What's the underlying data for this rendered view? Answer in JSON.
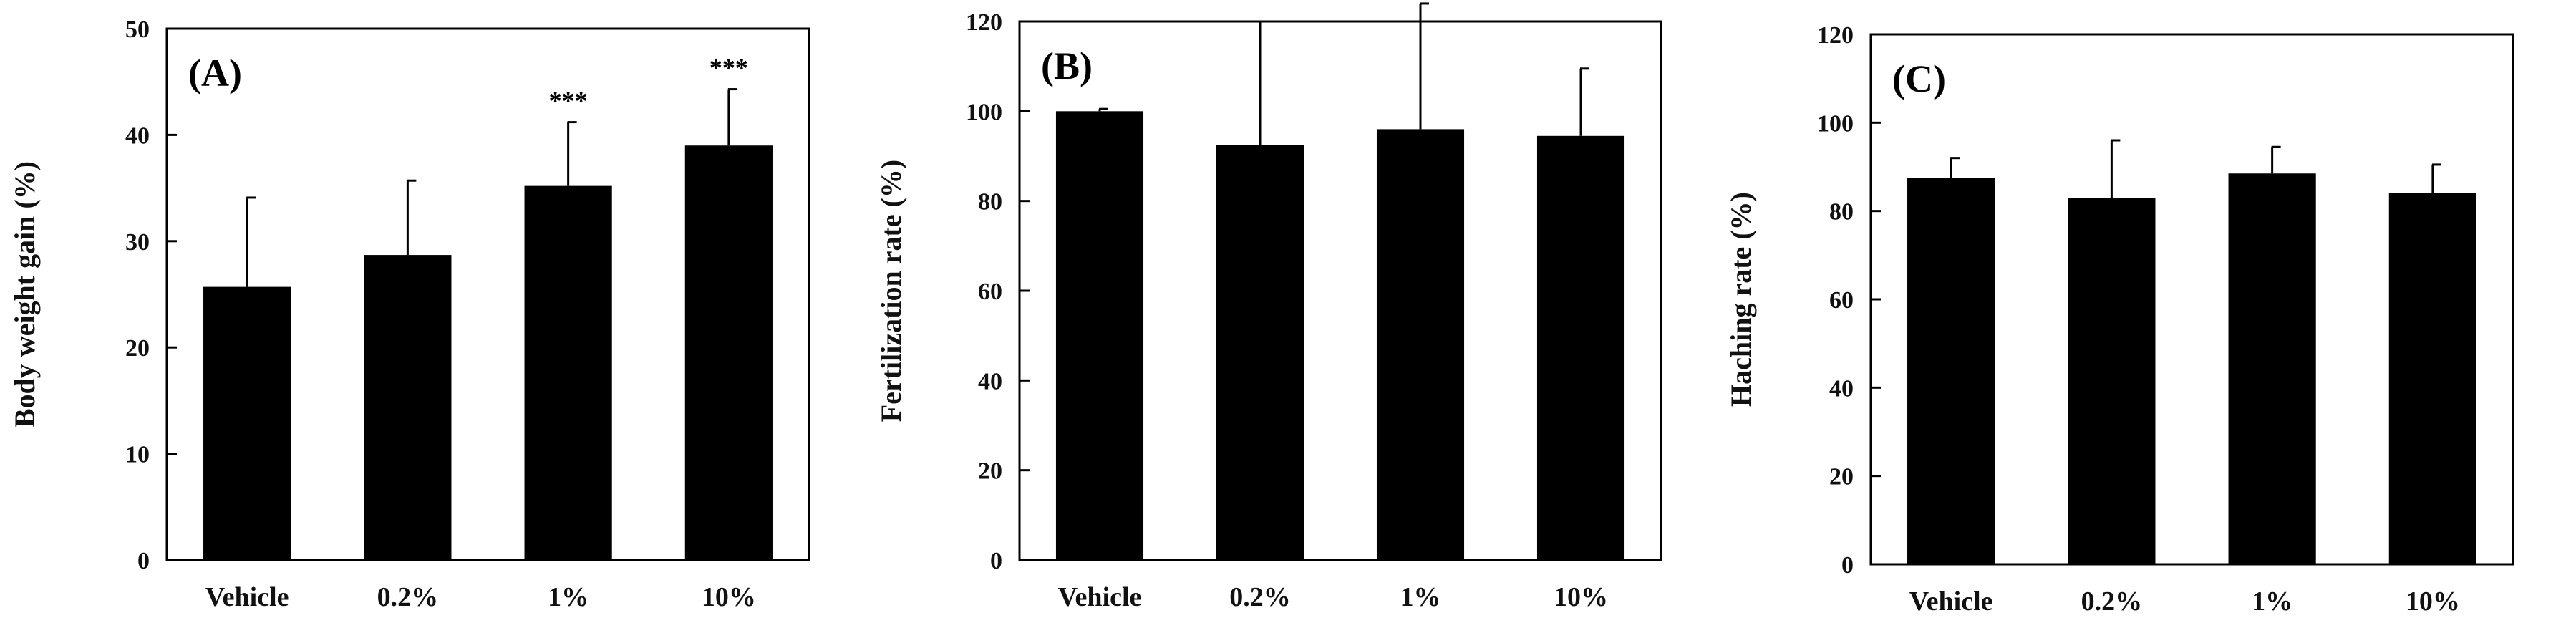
{
  "chart_data": [
    {
      "type": "bar",
      "panel_label": "(A)",
      "ylabel": "Body weight gain (%)",
      "categories": [
        "Vehicle",
        "0.2%",
        "1%",
        "10%"
      ],
      "values": [
        25.7,
        28.7,
        35.2,
        39.0
      ],
      "errors": [
        8.4,
        7.0,
        6.0,
        5.3
      ],
      "annotations": [
        "",
        "",
        "***",
        "***"
      ],
      "ylim": [
        0,
        50
      ],
      "yticks": [
        "0",
        "10",
        "20",
        "30",
        "40",
        "50"
      ],
      "bar_color": "#000000",
      "grid": false
    },
    {
      "type": "bar",
      "panel_label": "(B)",
      "ylabel": "Fertilization rate  (%)",
      "categories": [
        "Vehicle",
        "0.2%",
        "1%",
        "10%"
      ],
      "values": [
        100,
        92.5,
        96,
        94.5
      ],
      "errors": [
        0.5,
        27.5,
        28,
        15
      ],
      "annotations": [
        "",
        "",
        "",
        ""
      ],
      "ylim": [
        0,
        120
      ],
      "yticks": [
        "0",
        "20",
        "40",
        "60",
        "80",
        "100",
        "120"
      ],
      "bar_color": "#000000",
      "grid": false
    },
    {
      "type": "bar",
      "panel_label": "(C)",
      "ylabel": "Haching rate (%)",
      "categories": [
        "Vehicle",
        "0.2%",
        "1%",
        "10%"
      ],
      "values": [
        87.5,
        83,
        88.5,
        84
      ],
      "errors": [
        4.5,
        13,
        6,
        6.5
      ],
      "annotations": [
        "",
        "",
        "",
        ""
      ],
      "ylim": [
        0,
        120
      ],
      "yticks": [
        "0",
        "20",
        "40",
        "60",
        "80",
        "100",
        "120"
      ],
      "bar_color": "#000000",
      "grid": false
    }
  ]
}
